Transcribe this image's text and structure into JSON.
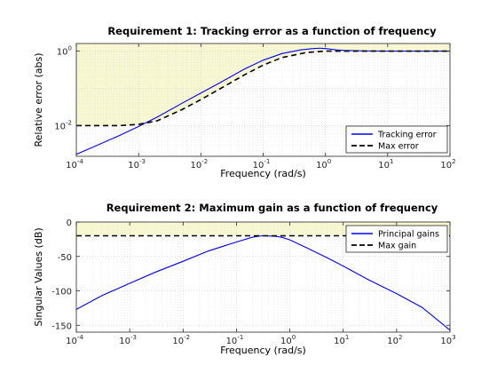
{
  "chart_data": [
    {
      "type": "line",
      "title": "Requirement 1: Tracking error as a function of frequency",
      "xlabel": "Frequency (rad/s)",
      "ylabel": "Relative error (abs)",
      "xscale": "log",
      "yscale": "log",
      "xlim": [
        0.0001,
        100
      ],
      "ylim": [
        0.0015,
        1.6
      ],
      "grid": true,
      "legend_position": "bottom-right",
      "shaded_region": "above max error",
      "shade_color": "#f7f7d2",
      "x_ticks": [
        {
          "base": "10",
          "exp": "-4",
          "value": 0.0001
        },
        {
          "base": "10",
          "exp": "-3",
          "value": 0.001
        },
        {
          "base": "10",
          "exp": "-2",
          "value": 0.01
        },
        {
          "base": "10",
          "exp": "-1",
          "value": 0.1
        },
        {
          "base": "10",
          "exp": "0",
          "value": 1
        },
        {
          "base": "10",
          "exp": "1",
          "value": 10
        },
        {
          "base": "10",
          "exp": "2",
          "value": 100
        }
      ],
      "y_ticks": [
        {
          "base": "10",
          "exp": "-2",
          "value": 0.01
        },
        {
          "base": "10",
          "exp": "0",
          "value": 1
        }
      ],
      "series": [
        {
          "name": "Tracking error",
          "style": "solid",
          "color": "#0000ff",
          "x": [
            0.0001,
            0.0002,
            0.0005,
            0.001,
            0.002,
            0.005,
            0.01,
            0.02,
            0.05,
            0.1,
            0.2,
            0.4,
            0.6,
            0.8,
            1,
            1.5,
            2,
            5,
            10,
            100
          ],
          "y": [
            0.0017,
            0.0028,
            0.0055,
            0.0095,
            0.017,
            0.04,
            0.075,
            0.14,
            0.33,
            0.57,
            0.86,
            1.08,
            1.16,
            1.2,
            1.17,
            1.08,
            1.04,
            1.01,
            1.0,
            1.0
          ]
        },
        {
          "name": "Max error",
          "style": "dashed",
          "color": "#000000",
          "x": [
            0.0001,
            0.0005,
            0.001,
            0.002,
            0.005,
            0.01,
            0.02,
            0.05,
            0.1,
            0.2,
            0.5,
            1,
            2,
            5,
            10,
            100
          ],
          "y": [
            0.01,
            0.01,
            0.0108,
            0.0135,
            0.027,
            0.05,
            0.096,
            0.23,
            0.42,
            0.67,
            0.92,
            1.0,
            1.0,
            1.0,
            1.0,
            1.0
          ]
        }
      ]
    },
    {
      "type": "line",
      "title": "Requirement 2: Maximum gain as a function of frequency",
      "xlabel": "Frequency (rad/s)",
      "ylabel": "Singular Values (dB)",
      "xscale": "log",
      "xlim": [
        0.0001,
        1000
      ],
      "ylim": [
        -160,
        0
      ],
      "grid": true,
      "legend_position": "top-right",
      "shaded_region": "above max gain",
      "shade_color": "#f7f7d2",
      "x_ticks": [
        {
          "base": "10",
          "exp": "-4",
          "value": 0.0001
        },
        {
          "base": "10",
          "exp": "-3",
          "value": 0.001
        },
        {
          "base": "10",
          "exp": "-2",
          "value": 0.01
        },
        {
          "base": "10",
          "exp": "-1",
          "value": 0.1
        },
        {
          "base": "10",
          "exp": "0",
          "value": 1
        },
        {
          "base": "10",
          "exp": "1",
          "value": 10
        },
        {
          "base": "10",
          "exp": "2",
          "value": 100
        },
        {
          "base": "10",
          "exp": "3",
          "value": 1000
        }
      ],
      "y_ticks": [
        {
          "label": "0",
          "value": 0
        },
        {
          "label": "-50",
          "value": -50
        },
        {
          "label": "-100",
          "value": -100
        },
        {
          "label": "-150",
          "value": -150
        }
      ],
      "series": [
        {
          "name": "Principal gains",
          "style": "solid",
          "color": "#0000ff",
          "x": [
            0.0001,
            0.0003,
            0.001,
            0.003,
            0.01,
            0.03,
            0.1,
            0.2,
            0.3,
            0.5,
            0.7,
            1,
            2,
            5,
            10,
            30,
            100,
            300,
            1000
          ],
          "y": [
            -127,
            -107,
            -89,
            -73,
            -57,
            -42,
            -29,
            -22,
            -20,
            -20.5,
            -22,
            -26,
            -37,
            -52,
            -64,
            -84,
            -104,
            -124,
            -157
          ]
        },
        {
          "name": "Max gain",
          "style": "dashed",
          "color": "#000000",
          "x": [
            0.0001,
            1000
          ],
          "y": [
            -20,
            -20
          ]
        }
      ]
    }
  ]
}
